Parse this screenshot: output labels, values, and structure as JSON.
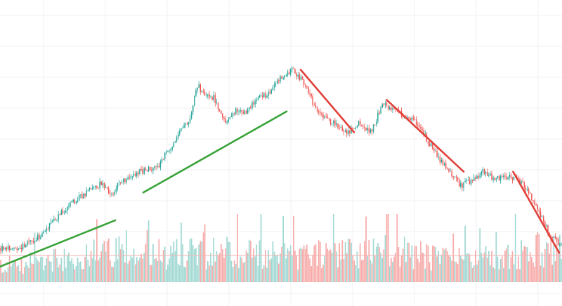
{
  "colors": {
    "background": "#ffffff",
    "grid": "#f1f1f4",
    "up": "#26a69a",
    "down": "#ef5350",
    "up_volume": "#9fd8d2",
    "down_volume": "#f6aaa8",
    "uptrend_line": "#3aa33a",
    "downtrend_line": "#e0413a",
    "volume_threshold_line": "#f3b3b3"
  },
  "chart_data": {
    "type": "candlestick",
    "title": "",
    "xlabel": "",
    "ylabel": "",
    "grid": true,
    "legend": "none",
    "price_range": [
      0,
      100
    ],
    "price_path": [
      [
        0,
        5
      ],
      [
        4,
        5.5
      ],
      [
        7,
        10
      ],
      [
        12.5,
        24
      ],
      [
        18,
        33
      ],
      [
        20,
        27
      ],
      [
        21,
        33
      ],
      [
        25,
        38
      ],
      [
        28,
        40
      ],
      [
        31,
        51
      ],
      [
        34,
        62
      ],
      [
        35,
        76
      ],
      [
        36,
        72
      ],
      [
        38,
        70
      ],
      [
        40,
        60
      ],
      [
        42,
        64
      ],
      [
        44,
        64
      ],
      [
        46,
        70
      ],
      [
        48,
        72
      ],
      [
        50,
        79
      ],
      [
        52,
        82
      ],
      [
        54,
        77
      ],
      [
        56,
        66
      ],
      [
        58,
        61
      ],
      [
        60,
        58
      ],
      [
        62,
        55
      ],
      [
        64,
        59
      ],
      [
        66,
        55
      ],
      [
        68,
        67
      ],
      [
        70,
        65
      ],
      [
        72,
        62
      ],
      [
        74,
        59
      ],
      [
        76,
        52
      ],
      [
        78,
        44
      ],
      [
        80,
        38
      ],
      [
        82,
        32
      ],
      [
        84,
        34
      ],
      [
        86,
        38
      ],
      [
        88,
        35
      ],
      [
        90,
        35
      ],
      [
        92,
        36
      ],
      [
        94,
        29
      ],
      [
        96,
        20
      ],
      [
        98,
        10
      ],
      [
        100,
        6
      ]
    ],
    "volume_range": [
      0,
      100
    ],
    "volume_profile": [
      [
        0,
        30
      ],
      [
        10,
        40
      ],
      [
        20,
        55
      ],
      [
        30,
        50
      ],
      [
        40,
        55
      ],
      [
        50,
        48
      ],
      [
        60,
        50
      ],
      [
        70,
        58
      ],
      [
        80,
        40
      ],
      [
        90,
        45
      ],
      [
        95,
        62
      ],
      [
        100,
        55
      ]
    ],
    "volume_threshold": 39,
    "trendlines": [
      {
        "kind": "uptrend",
        "x": [
          0,
          20.5
        ],
        "y": [
          -3,
          17
        ]
      },
      {
        "kind": "uptrend",
        "x": [
          25.5,
          51
        ],
        "y": [
          29,
          64
        ]
      },
      {
        "kind": "downtrend",
        "x": [
          53.5,
          63
        ],
        "y": [
          82,
          55
        ]
      },
      {
        "kind": "downtrend",
        "x": [
          68.8,
          82.5
        ],
        "y": [
          69,
          38
        ]
      },
      {
        "kind": "downtrend",
        "x": [
          91.3,
          99.5
        ],
        "y": [
          38,
          3
        ]
      }
    ]
  }
}
